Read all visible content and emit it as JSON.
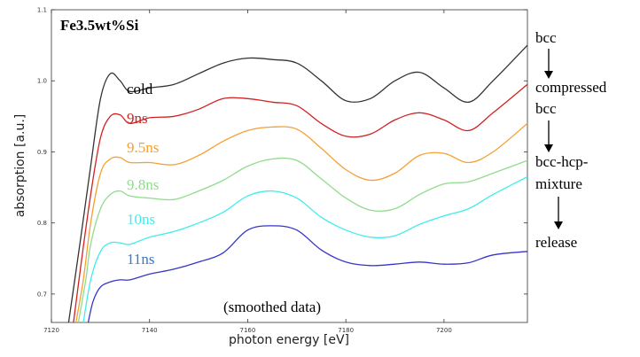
{
  "chart_data": {
    "type": "line",
    "title": "Fe3.5wt%Si",
    "xlabel": "photon energy [eV]",
    "ylabel": "absorption [a.u.]",
    "xlim": [
      7120,
      7217
    ],
    "ylim": [
      0.66,
      1.1
    ],
    "xticks": [
      7120,
      7140,
      7160,
      7180,
      7200
    ],
    "yticks": [
      0.7,
      0.8,
      0.9,
      1.0,
      1.1
    ],
    "xtick_labels": [
      "7120",
      "7140",
      "7160",
      "7180",
      "7200"
    ],
    "ytick_labels": [
      "0.7",
      "0.8",
      "0.9",
      "1.0",
      "1.1"
    ],
    "grid": false,
    "annotation": "(smoothed data)",
    "phase_labels": [
      "bcc",
      "compressed",
      "bcc",
      "bcc-hcp-",
      "mixture",
      "release"
    ],
    "series": [
      {
        "name": "cold",
        "color": "#333333",
        "x": [
          7123.5,
          7126,
          7128,
          7130,
          7132,
          7134,
          7136,
          7140,
          7145,
          7150,
          7155,
          7160,
          7165,
          7170,
          7175,
          7180,
          7185,
          7190,
          7195,
          7200,
          7205,
          7210,
          7217
        ],
        "y": [
          0.66,
          0.78,
          0.88,
          0.975,
          1.01,
          1.0,
          0.985,
          0.99,
          0.995,
          1.01,
          1.025,
          1.032,
          1.03,
          1.025,
          1.0,
          0.972,
          0.975,
          1.0,
          1.012,
          0.99,
          0.97,
          1.0,
          1.05
        ]
      },
      {
        "name": "9ns",
        "color": "#d42020",
        "x": [
          7124.5,
          7126,
          7128,
          7130,
          7132,
          7134,
          7136,
          7140,
          7145,
          7150,
          7155,
          7160,
          7165,
          7170,
          7175,
          7180,
          7185,
          7190,
          7195,
          7200,
          7205,
          7210,
          7217
        ],
        "y": [
          0.66,
          0.74,
          0.84,
          0.92,
          0.95,
          0.952,
          0.94,
          0.948,
          0.95,
          0.96,
          0.975,
          0.975,
          0.97,
          0.965,
          0.94,
          0.922,
          0.925,
          0.945,
          0.955,
          0.945,
          0.93,
          0.955,
          0.995
        ]
      },
      {
        "name": "9.5ns",
        "color": "#f5a030",
        "x": [
          7125,
          7126.5,
          7128,
          7130,
          7132,
          7134,
          7136,
          7140,
          7145,
          7150,
          7155,
          7160,
          7165,
          7170,
          7175,
          7180,
          7185,
          7190,
          7195,
          7200,
          7205,
          7210,
          7217
        ],
        "y": [
          0.66,
          0.72,
          0.8,
          0.87,
          0.89,
          0.892,
          0.885,
          0.885,
          0.882,
          0.895,
          0.915,
          0.93,
          0.935,
          0.932,
          0.905,
          0.875,
          0.86,
          0.87,
          0.895,
          0.898,
          0.885,
          0.9,
          0.94
        ]
      },
      {
        "name": "9.8ns",
        "color": "#90dc8c",
        "x": [
          7125.5,
          7127,
          7128,
          7130,
          7132,
          7134,
          7136,
          7140,
          7145,
          7150,
          7155,
          7160,
          7165,
          7170,
          7175,
          7180,
          7185,
          7190,
          7195,
          7200,
          7205,
          7210,
          7217
        ],
        "y": [
          0.66,
          0.72,
          0.77,
          0.82,
          0.84,
          0.845,
          0.838,
          0.835,
          0.833,
          0.845,
          0.86,
          0.88,
          0.89,
          0.888,
          0.862,
          0.835,
          0.818,
          0.82,
          0.84,
          0.855,
          0.858,
          0.87,
          0.888
        ]
      },
      {
        "name": "10ns",
        "color": "#40ecec",
        "x": [
          7126.5,
          7128,
          7130,
          7132,
          7134,
          7136,
          7140,
          7145,
          7150,
          7155,
          7160,
          7165,
          7170,
          7175,
          7180,
          7185,
          7190,
          7195,
          7200,
          7205,
          7210,
          7217
        ],
        "y": [
          0.66,
          0.72,
          0.76,
          0.772,
          0.772,
          0.77,
          0.78,
          0.788,
          0.8,
          0.815,
          0.838,
          0.845,
          0.835,
          0.808,
          0.79,
          0.78,
          0.782,
          0.798,
          0.81,
          0.82,
          0.84,
          0.865
        ]
      },
      {
        "name": "11ns",
        "color": "#3535c8",
        "x": [
          7127.5,
          7128.5,
          7130,
          7132,
          7134,
          7136,
          7140,
          7145,
          7150,
          7155,
          7160,
          7165,
          7170,
          7175,
          7180,
          7185,
          7190,
          7195,
          7200,
          7205,
          7210,
          7217
        ],
        "y": [
          0.66,
          0.69,
          0.71,
          0.717,
          0.72,
          0.72,
          0.728,
          0.735,
          0.745,
          0.758,
          0.79,
          0.796,
          0.79,
          0.762,
          0.745,
          0.74,
          0.742,
          0.745,
          0.742,
          0.744,
          0.755,
          0.76
        ]
      }
    ]
  },
  "layout_labels": {
    "cold": "cold",
    "s9": "9ns",
    "s95": "9.5ns",
    "s98": "9.8ns",
    "s10": "10ns",
    "s11": "11ns"
  }
}
